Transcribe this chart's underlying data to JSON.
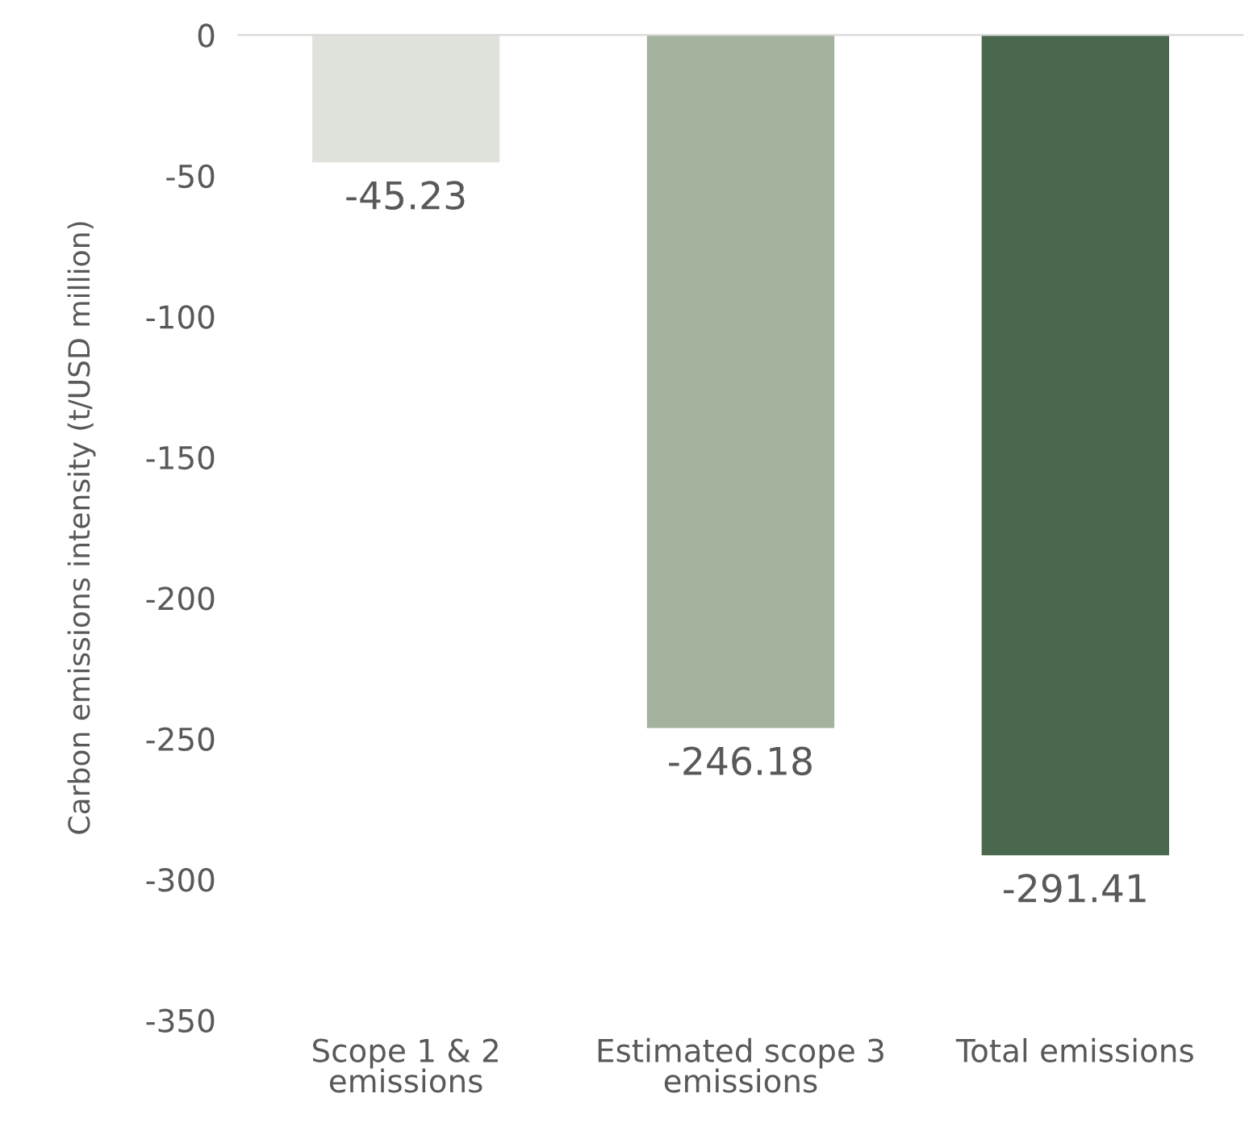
{
  "chart_data": {
    "type": "bar",
    "ylabel": "Carbon emissions intensity (t/USD million)",
    "categories": [
      "Scope 1 & 2\nemissions",
      "Estimated scope 3\nemissions",
      "Total emissions"
    ],
    "values": [
      -45.23,
      -246.18,
      -291.41
    ],
    "colors": [
      "#dfe3dc",
      "#a3b39e",
      "#4a684e"
    ],
    "ylim": [
      -350,
      0
    ],
    "yticks": [
      -350,
      -300,
      -250,
      -200,
      -150,
      -100,
      -50,
      0
    ],
    "data_labels": true,
    "grid": false
  }
}
